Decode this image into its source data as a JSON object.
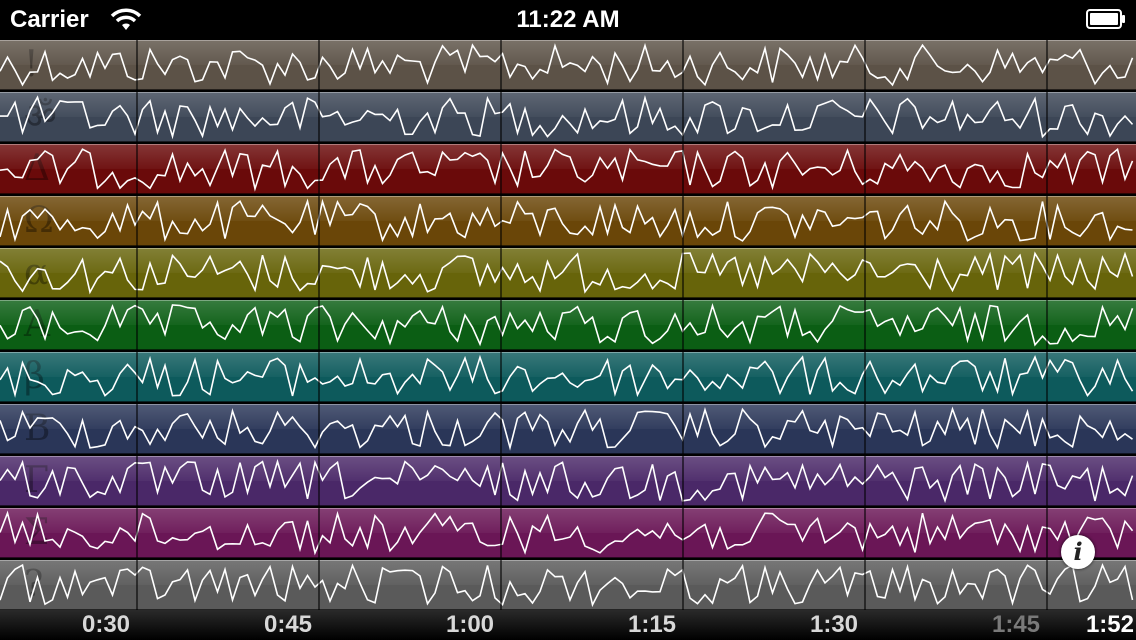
{
  "status_bar": {
    "carrier": "Carrier",
    "time": "11:22 AM"
  },
  "tracks": [
    {
      "glyph": "!",
      "color": "#5c5247"
    },
    {
      "glyph": "ॐ",
      "color": "#3c4656"
    },
    {
      "glyph": "Δ",
      "color": "#6a0a0a"
    },
    {
      "glyph": "Ω",
      "color": "#6a4608"
    },
    {
      "glyph": "α",
      "color": "#67640a"
    },
    {
      "glyph": "A",
      "color": "#0b5e14"
    },
    {
      "glyph": "β",
      "color": "#0d5a5c"
    },
    {
      "glyph": "B",
      "color": "#2a3658"
    },
    {
      "glyph": "Γ",
      "color": "#4a2868"
    },
    {
      "glyph": "Σ",
      "color": "#6a1656"
    },
    {
      "glyph": "?",
      "color": "#5a5a5a"
    }
  ],
  "timeline": {
    "ticks": [
      {
        "label": "0:30",
        "dim": false
      },
      {
        "label": "0:45",
        "dim": false
      },
      {
        "label": "1:00",
        "dim": false
      },
      {
        "label": "1:15",
        "dim": false
      },
      {
        "label": "1:30",
        "dim": false
      },
      {
        "label": "1:45",
        "dim": true
      }
    ],
    "current": "1:52"
  },
  "info_button": {
    "label": "i"
  }
}
